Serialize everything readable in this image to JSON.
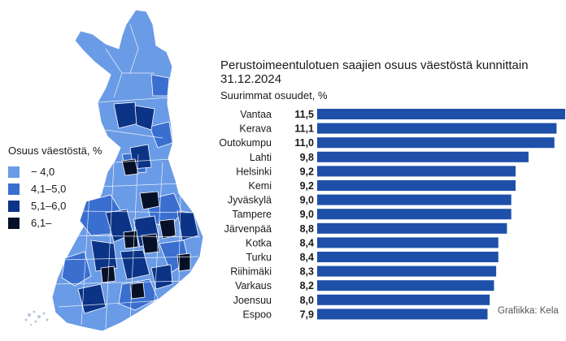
{
  "title": "Perustoimeentulotuen saajien osuus väestöstä kunnittain 31.12.2024",
  "subtitle": "Suurimmat osuudet, %",
  "legend": {
    "title": "Osuus väestöstä, %",
    "items": [
      {
        "label": "− 4,0",
        "color": "#6a9be6"
      },
      {
        "label": "4,1–5,0",
        "color": "#3a6fd0"
      },
      {
        "label": "5,1–6,0",
        "color": "#0c3486"
      },
      {
        "label": "6,1–",
        "color": "#061129"
      }
    ]
  },
  "source": "Grafiikka: Kela",
  "chart_data": {
    "type": "bar",
    "orientation": "horizontal",
    "categories": [
      "Vantaa",
      "Kerava",
      "Outokumpu",
      "Lahti",
      "Helsinki",
      "Kemi",
      "Jyväskylä",
      "Tampere",
      "Järvenpää",
      "Kotka",
      "Turku",
      "Riihimäki",
      "Varkaus",
      "Joensuu",
      "Espoo"
    ],
    "values": [
      11.5,
      11.1,
      11.0,
      9.8,
      9.2,
      9.2,
      9.0,
      9.0,
      8.8,
      8.4,
      8.4,
      8.3,
      8.2,
      8.0,
      7.9
    ],
    "value_labels": [
      "11,5",
      "11,1",
      "11,0",
      "9,8",
      "9,2",
      "9,2",
      "9,0",
      "9,0",
      "8,8",
      "8,4",
      "8,4",
      "8,3",
      "8,2",
      "8,0",
      "7,9"
    ],
    "bar_color": "#1e50aa",
    "grid": false
  }
}
